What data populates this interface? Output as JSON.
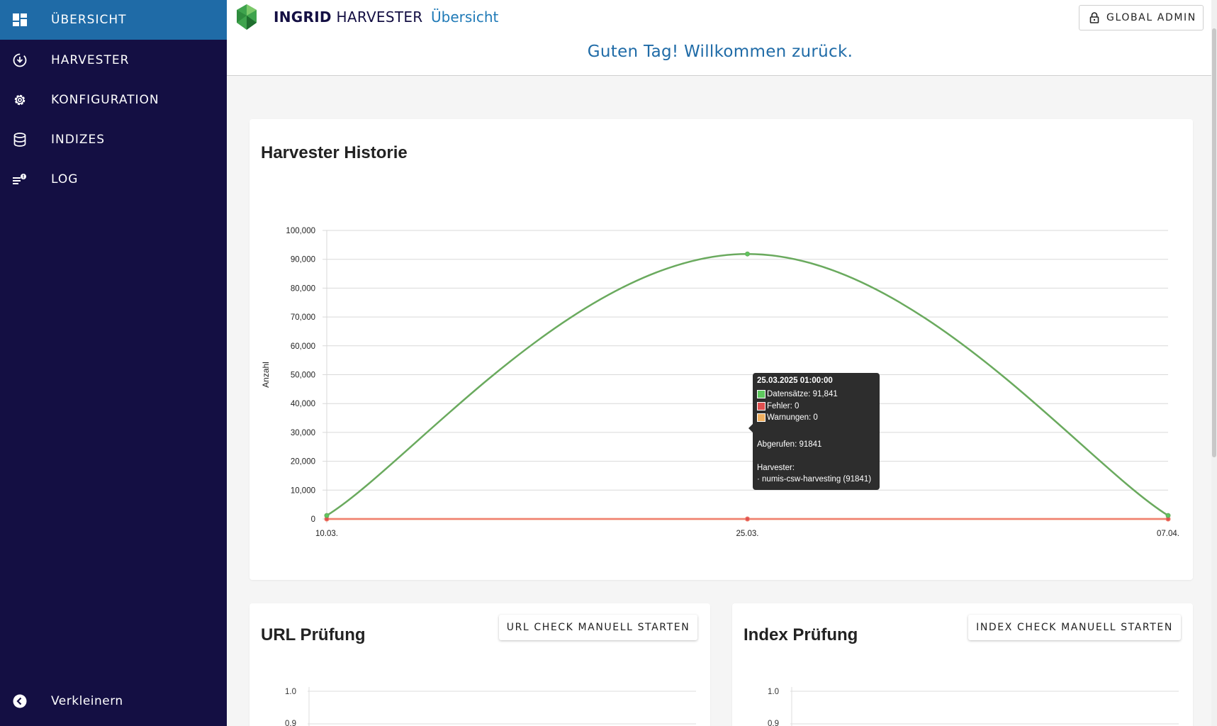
{
  "sidebar": {
    "items": [
      {
        "label": "ÜBERSICHT",
        "icon": "dashboard-icon"
      },
      {
        "label": "HARVESTER",
        "icon": "download-circle-icon"
      },
      {
        "label": "KONFIGURATION",
        "icon": "gear-icon"
      },
      {
        "label": "INDIZES",
        "icon": "database-icon"
      },
      {
        "label": "LOG",
        "icon": "log-list-icon"
      }
    ],
    "active_index": 0,
    "collapse_label": "Verkleinern"
  },
  "header": {
    "brand_bold": "INGRID",
    "brand_rest": "HARVESTER",
    "breadcrumb": "Übersicht",
    "admin_label": "GLOBAL ADMIN",
    "welcome": "Guten Tag! Willkommen zurück."
  },
  "history": {
    "title": "Harvester Historie"
  },
  "chart_data": [
    {
      "type": "line",
      "title": "Harvester Historie",
      "ylabel": "Anzahl",
      "ylim": [
        0,
        100000
      ],
      "y_ticks": [
        "0",
        "10,000",
        "20,000",
        "30,000",
        "40,000",
        "50,000",
        "60,000",
        "70,000",
        "80,000",
        "90,000",
        "100,000"
      ],
      "categories": [
        "10.03.",
        "25.03.",
        "07.04."
      ],
      "series": [
        {
          "name": "Datensätze",
          "values": [
            1200,
            91841,
            1200
          ],
          "color": "#6aaa5e"
        },
        {
          "name": "Fehler",
          "values": [
            0,
            0,
            0
          ],
          "color": "#f08070"
        },
        {
          "name": "Warnungen",
          "values": [
            0,
            0,
            0
          ],
          "color": "#f5b866"
        }
      ],
      "grid": true,
      "tooltip": {
        "title": "25.03.2025 01:00:00",
        "rows": [
          {
            "label": "Datensätze: 91,841",
            "color": "#5ec85e"
          },
          {
            "label": "Fehler: 0",
            "color": "#e05050"
          },
          {
            "label": "Warnungen: 0",
            "color": "#f0b060"
          }
        ],
        "fetched": "Abgerufen: 91841",
        "harvester_heading": "Harvester:",
        "harvester_entry": "· numis-csw-harvesting (91841)"
      }
    },
    {
      "type": "line",
      "title": "URL Prüfung",
      "y_ticks_visible": [
        "1.0",
        "0.9"
      ]
    },
    {
      "type": "line",
      "title": "Index Prüfung",
      "y_ticks_visible": [
        "1.0",
        "0.9"
      ]
    }
  ],
  "url_check": {
    "title": "URL Prüfung",
    "button": "URL CHECK MANUELL STARTEN",
    "ticks": [
      "1.0",
      "0.9"
    ]
  },
  "index_check": {
    "title": "Index Prüfung",
    "button": "INDEX CHECK MANUELL STARTEN",
    "ticks": [
      "1.0",
      "0.9"
    ]
  }
}
